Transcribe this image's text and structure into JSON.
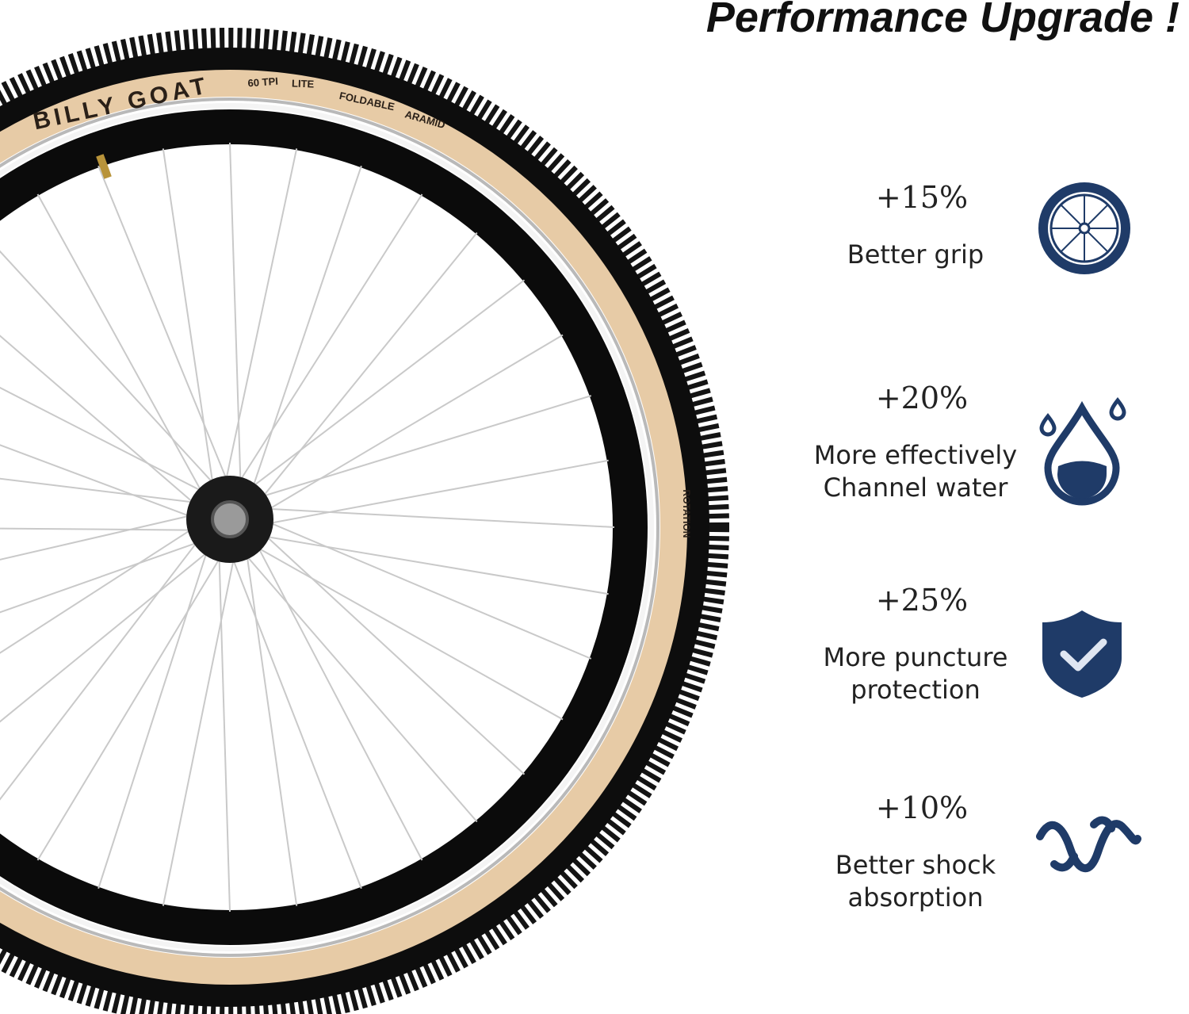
{
  "header": {
    "title": "Performance Upgrade !"
  },
  "tire": {
    "brand": "BILLY GOAT",
    "tpi": "60 TPI",
    "lite": "LITE",
    "foldable": "FOLDABLE",
    "aramid": "ARAMID",
    "rotation": "ROTATION"
  },
  "features": [
    {
      "percent": "+15%",
      "lines": [
        "Better grip"
      ]
    },
    {
      "percent": "+20%",
      "lines": [
        "More effectively",
        "Channel water"
      ]
    },
    {
      "percent": "+25%",
      "lines": [
        "More puncture",
        "protection"
      ]
    },
    {
      "percent": "+10%",
      "lines": [
        "Better shock",
        "absorption"
      ]
    }
  ]
}
